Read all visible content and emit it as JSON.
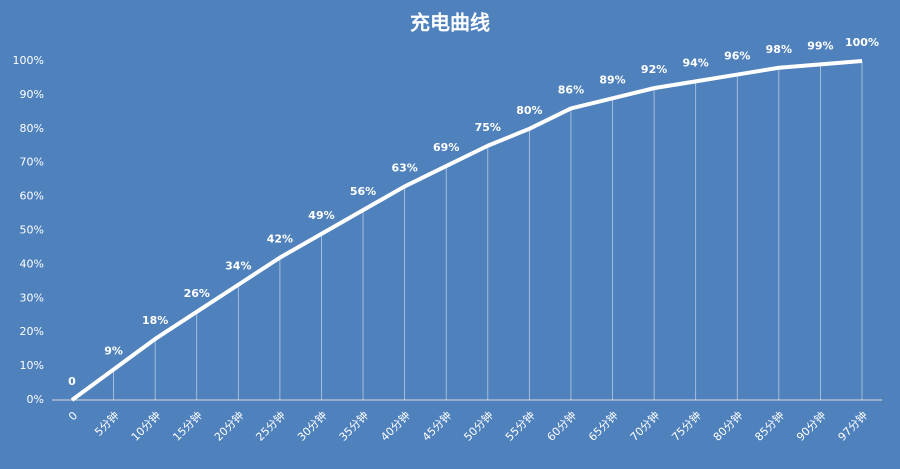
{
  "chart_data": {
    "type": "line",
    "title": "充电曲线",
    "categories": [
      "0",
      "5分钟",
      "10分钟",
      "15分钟",
      "20分钟",
      "25分钟",
      "30分钟",
      "35分钟",
      "40分钟",
      "45分钟",
      "50分钟",
      "55分钟",
      "60分钟",
      "65分钟",
      "70分钟",
      "75分钟",
      "80分钟",
      "85分钟",
      "90分钟",
      "97分钟"
    ],
    "values": [
      0,
      9,
      18,
      26,
      34,
      42,
      49,
      56,
      63,
      69,
      75,
      80,
      86,
      89,
      92,
      94,
      96,
      98,
      99,
      100
    ],
    "value_labels": [
      "0",
      "9%",
      "18%",
      "26%",
      "34%",
      "42%",
      "49%",
      "56%",
      "63%",
      "69%",
      "75%",
      "80%",
      "86%",
      "89%",
      "92%",
      "94%",
      "96%",
      "98%",
      "99%",
      "100%"
    ],
    "color": "#ffffff",
    "ylim": [
      0,
      100
    ],
    "yticks": [
      {
        "value": 0,
        "label": "0%"
      },
      {
        "value": 10,
        "label": "10%"
      },
      {
        "value": 20,
        "label": "20%"
      },
      {
        "value": 30,
        "label": "30%"
      },
      {
        "value": 40,
        "label": "40%"
      },
      {
        "value": 50,
        "label": "50%"
      },
      {
        "value": 60,
        "label": "60%"
      },
      {
        "value": 70,
        "label": "70%"
      },
      {
        "value": 80,
        "label": "80%"
      },
      {
        "value": 90,
        "label": "90%"
      },
      {
        "value": 100,
        "label": "100%"
      }
    ],
    "drop_lines": true
  }
}
